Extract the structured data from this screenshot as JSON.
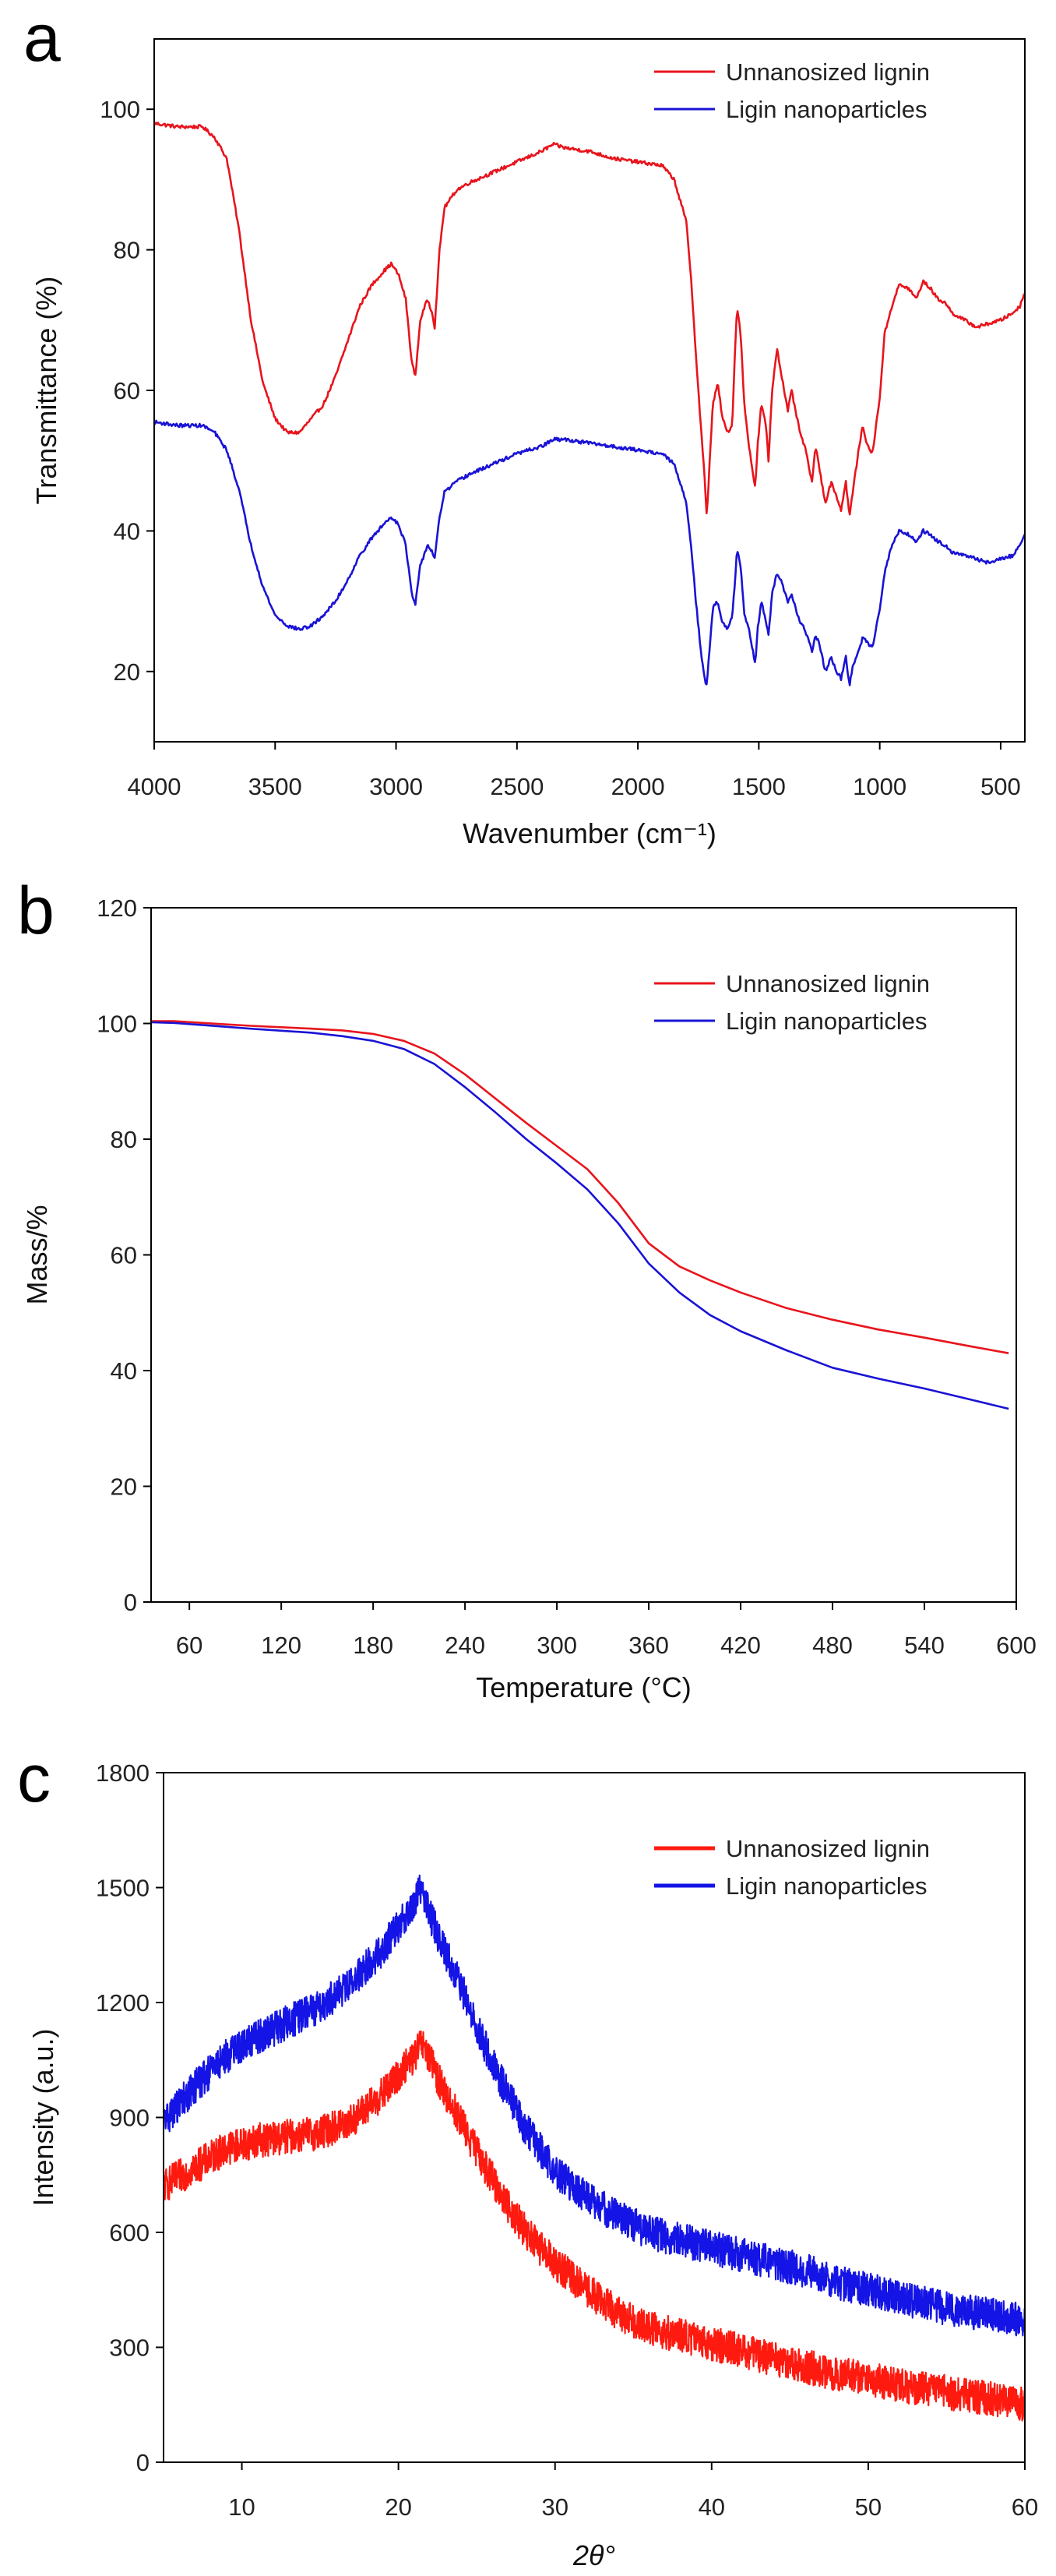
{
  "chart_data": [
    {
      "panel": "a",
      "type": "line",
      "title": "",
      "xlabel": "Wavenumber (cm⁻¹)",
      "ylabel": "Transmittance (%)",
      "xlim": [
        4000,
        400
      ],
      "ylim": [
        10,
        110
      ],
      "x_reversed": true,
      "xticks": [
        4000,
        3500,
        3000,
        2500,
        2000,
        1500,
        1000,
        500
      ],
      "yticks": [
        20,
        40,
        60,
        80,
        100
      ],
      "grid": false,
      "legend_position": "top-right",
      "noise": 0.25,
      "series": [
        {
          "name": "Unnanosized lignin",
          "color": "#e8141c",
          "x": [
            4000,
            3900,
            3800,
            3750,
            3700,
            3650,
            3600,
            3550,
            3500,
            3450,
            3400,
            3350,
            3300,
            3250,
            3200,
            3150,
            3100,
            3050,
            3020,
            2990,
            2960,
            2935,
            2920,
            2900,
            2870,
            2850,
            2840,
            2820,
            2800,
            2750,
            2700,
            2600,
            2500,
            2400,
            2350,
            2300,
            2200,
            2100,
            2000,
            1900,
            1850,
            1800,
            1780,
            1760,
            1740,
            1725,
            1715,
            1700,
            1690,
            1670,
            1650,
            1630,
            1610,
            1598,
            1590,
            1575,
            1560,
            1540,
            1515,
            1505,
            1490,
            1470,
            1460,
            1445,
            1425,
            1410,
            1380,
            1365,
            1330,
            1310,
            1280,
            1265,
            1250,
            1225,
            1200,
            1180,
            1160,
            1140,
            1125,
            1110,
            1085,
            1070,
            1050,
            1030,
            1000,
            980,
            950,
            920,
            880,
            850,
            820,
            790,
            760,
            730,
            700,
            650,
            600,
            550,
            500,
            450,
            420,
            400
          ],
          "y": [
            98,
            97.5,
            97.5,
            96,
            93,
            83,
            70,
            61,
            56,
            54,
            54,
            56,
            58,
            62,
            67,
            72,
            75,
            77,
            78,
            76.5,
            73,
            64,
            62,
            70,
            73,
            71,
            69,
            80,
            86,
            88.5,
            89.5,
            91,
            92.5,
            94,
            95,
            94.5,
            94,
            93,
            92.5,
            92,
            90,
            84,
            76,
            65,
            55,
            48,
            42,
            52,
            58,
            61,
            56,
            54,
            55,
            66,
            72,
            68,
            58,
            52,
            46,
            52,
            58,
            55,
            50,
            60,
            66,
            63,
            57,
            60,
            54,
            52,
            47,
            52,
            49,
            44,
            47,
            45,
            43,
            47,
            42,
            46,
            52,
            55,
            52,
            51,
            59,
            68,
            72,
            75,
            74.5,
            73,
            75.5,
            74.5,
            73,
            72.5,
            71,
            70,
            69,
            69.5,
            70,
            71,
            72,
            74
          ]
        },
        {
          "name": "Ligin nanoparticles",
          "color": "#1a13d4",
          "x": [
            4000,
            3900,
            3800,
            3750,
            3700,
            3650,
            3600,
            3550,
            3500,
            3450,
            3400,
            3350,
            3300,
            3250,
            3200,
            3150,
            3100,
            3050,
            3020,
            2990,
            2960,
            2935,
            2920,
            2900,
            2870,
            2850,
            2840,
            2820,
            2800,
            2750,
            2700,
            2600,
            2500,
            2400,
            2350,
            2300,
            2200,
            2100,
            2000,
            1900,
            1850,
            1800,
            1780,
            1760,
            1740,
            1725,
            1715,
            1700,
            1690,
            1670,
            1650,
            1630,
            1610,
            1598,
            1590,
            1575,
            1560,
            1540,
            1515,
            1505,
            1490,
            1470,
            1460,
            1445,
            1425,
            1410,
            1380,
            1365,
            1330,
            1310,
            1280,
            1265,
            1250,
            1225,
            1200,
            1180,
            1160,
            1140,
            1125,
            1110,
            1085,
            1070,
            1050,
            1030,
            1000,
            980,
            950,
            920,
            880,
            850,
            820,
            790,
            760,
            730,
            700,
            650,
            600,
            550,
            500,
            450,
            420,
            400
          ],
          "y": [
            55.5,
            55,
            55,
            54,
            51.5,
            46,
            38,
            32,
            28,
            26.5,
            26,
            26.5,
            28,
            30,
            33,
            36.5,
            39,
            41,
            42,
            41,
            38,
            31,
            29.5,
            35,
            38,
            37,
            36,
            42,
            45.5,
            47,
            48,
            49.5,
            51,
            52,
            53,
            53,
            52.5,
            52,
            51.5,
            51,
            49.5,
            44,
            38,
            30,
            23,
            19,
            18,
            25,
            29,
            30,
            27,
            26,
            28,
            33,
            37.5,
            35,
            28,
            26,
            21,
            26,
            30,
            27,
            25,
            31,
            34,
            33,
            30,
            31,
            27,
            26,
            23,
            25,
            24,
            20,
            22,
            20,
            19,
            22,
            18,
            21,
            23,
            25,
            24,
            23.5,
            29,
            34,
            38,
            40,
            39.5,
            38.5,
            40,
            39.5,
            38.5,
            38,
            37,
            36.5,
            36,
            35.5,
            36,
            36.5,
            38,
            39.5
          ]
        }
      ]
    },
    {
      "panel": "b",
      "type": "line",
      "title": "",
      "xlabel": "Temperature (°C)",
      "ylabel": "Mass/%",
      "xlim": [
        35,
        600
      ],
      "ylim": [
        0,
        120
      ],
      "xticks": [
        60,
        120,
        180,
        240,
        300,
        360,
        420,
        480,
        540,
        600
      ],
      "yticks": [
        0,
        20,
        40,
        60,
        80,
        100,
        120
      ],
      "grid": false,
      "legend_position": "top-right",
      "noise": 0,
      "series": [
        {
          "name": "Unnanosized lignin",
          "color": "#e8141c",
          "x": [
            35,
            50,
            80,
            100,
            140,
            160,
            180,
            200,
            220,
            240,
            260,
            280,
            300,
            320,
            340,
            360,
            380,
            400,
            420,
            450,
            480,
            510,
            540,
            570,
            595
          ],
          "y": [
            100.4,
            100.4,
            99.9,
            99.6,
            99.1,
            98.8,
            98.2,
            97,
            94.8,
            91.2,
            87,
            82.8,
            78.8,
            74.8,
            69,
            62,
            58,
            55.6,
            53.5,
            50.8,
            48.8,
            47.1,
            45.7,
            44.2,
            43
          ]
        },
        {
          "name": "Ligin nanoparticles",
          "color": "#1a13d4",
          "x": [
            35,
            50,
            80,
            100,
            140,
            160,
            180,
            200,
            220,
            240,
            260,
            280,
            300,
            320,
            340,
            360,
            380,
            400,
            420,
            450,
            480,
            510,
            540,
            570,
            595
          ],
          "y": [
            100.2,
            100.1,
            99.5,
            99.1,
            98.4,
            97.8,
            97,
            95.6,
            93,
            89,
            84.6,
            80,
            75.8,
            71.3,
            65.5,
            58.5,
            53.5,
            49.6,
            46.8,
            43.5,
            40.5,
            38.6,
            36.9,
            35,
            33.4
          ]
        }
      ]
    },
    {
      "panel": "c",
      "type": "line",
      "title": "",
      "xlabel": "2θ°",
      "ylabel": "Intensity (a.u.)",
      "xlim": [
        5,
        60
      ],
      "ylim": [
        0,
        1800
      ],
      "xticks": [
        10,
        20,
        30,
        40,
        50,
        60
      ],
      "yticks": [
        0,
        300,
        600,
        900,
        1200,
        1500,
        1800
      ],
      "grid": false,
      "legend_position": "top-right",
      "noise": 45,
      "series": [
        {
          "name": "Unnanosized lignin",
          "color": "#ff1a10",
          "x": [
            5,
            7,
            9,
            11,
            13,
            15,
            17,
            19,
            20,
            21,
            21.5,
            22,
            23,
            24,
            25,
            26,
            27,
            28,
            29,
            30,
            32,
            34,
            36,
            38,
            40,
            42,
            44,
            46,
            48,
            50,
            52,
            54,
            56,
            58,
            60
          ],
          "y": [
            720,
            770,
            820,
            840,
            850,
            860,
            890,
            960,
            1010,
            1060,
            1090,
            1050,
            960,
            890,
            810,
            740,
            670,
            610,
            560,
            520,
            450,
            390,
            350,
            330,
            310,
            290,
            270,
            250,
            230,
            220,
            200,
            190,
            175,
            165,
            150
          ]
        },
        {
          "name": "Ligin nanoparticles",
          "color": "#1414e6",
          "x": [
            5,
            7,
            9,
            11,
            13,
            15,
            17,
            19,
            20,
            21,
            21.5,
            22,
            23,
            24,
            25,
            26,
            27,
            28,
            29,
            30,
            32,
            34,
            36,
            38,
            40,
            42,
            44,
            46,
            48,
            50,
            52,
            54,
            56,
            58,
            60
          ],
          "y": [
            890,
            980,
            1060,
            1110,
            1150,
            1190,
            1250,
            1340,
            1400,
            1460,
            1500,
            1430,
            1330,
            1240,
            1140,
            1040,
            960,
            880,
            820,
            760,
            690,
            640,
            600,
            580,
            560,
            540,
            520,
            500,
            470,
            450,
            430,
            410,
            395,
            385,
            370
          ]
        }
      ]
    }
  ]
}
